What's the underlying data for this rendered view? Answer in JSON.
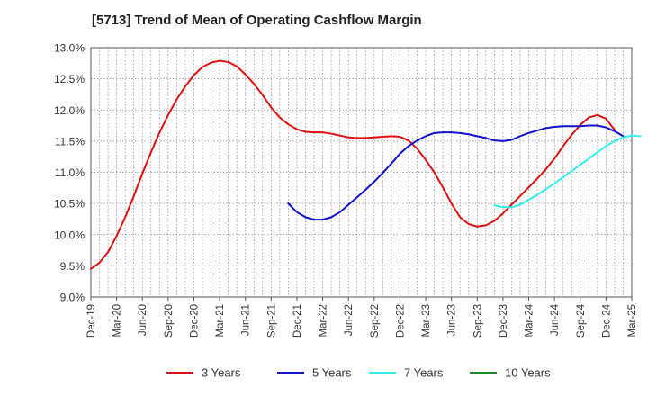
{
  "chart_data": {
    "type": "line",
    "title": "[5713]  Trend of Mean of Operating Cashflow Margin",
    "xlabel": "",
    "ylabel": "",
    "x_ticks": [
      "Dec-19",
      "Mar-20",
      "Jun-20",
      "Sep-20",
      "Dec-20",
      "Mar-21",
      "Jun-21",
      "Sep-21",
      "Dec-21",
      "Mar-22",
      "Jun-22",
      "Sep-22",
      "Dec-22",
      "Mar-23",
      "Jun-23",
      "Sep-23",
      "Dec-23",
      "Mar-24",
      "Jun-24",
      "Sep-24",
      "Dec-24",
      "Mar-25"
    ],
    "y_ticks": [
      "9.0%",
      "9.5%",
      "10.0%",
      "10.5%",
      "11.0%",
      "11.5%",
      "12.0%",
      "12.5%",
      "13.0%"
    ],
    "ylim": [
      9.0,
      13.0
    ],
    "grid": true,
    "legend_position": "bottom",
    "series": [
      {
        "name": "3 Years",
        "color": "#dd1111",
        "points": [
          [
            "Dec-19",
            9.45
          ],
          [
            "Jan-20",
            9.55
          ],
          [
            "Feb-20",
            9.72
          ],
          [
            "Mar-20",
            9.98
          ],
          [
            "Apr-20",
            10.28
          ],
          [
            "May-20",
            10.62
          ],
          [
            "Jun-20",
            10.98
          ],
          [
            "Jul-20",
            11.32
          ],
          [
            "Aug-20",
            11.64
          ],
          [
            "Sep-20",
            11.92
          ],
          [
            "Oct-20",
            12.17
          ],
          [
            "Nov-20",
            12.38
          ],
          [
            "Dec-20",
            12.56
          ],
          [
            "Jan-21",
            12.69
          ],
          [
            "Feb-21",
            12.76
          ],
          [
            "Mar-21",
            12.79
          ],
          [
            "Apr-21",
            12.77
          ],
          [
            "May-21",
            12.7
          ],
          [
            "Jun-21",
            12.57
          ],
          [
            "Jul-21",
            12.42
          ],
          [
            "Aug-21",
            12.24
          ],
          [
            "Sep-21",
            12.04
          ],
          [
            "Oct-21",
            11.88
          ],
          [
            "Nov-21",
            11.77
          ],
          [
            "Dec-21",
            11.69
          ],
          [
            "Jan-22",
            11.65
          ],
          [
            "Feb-22",
            11.64
          ],
          [
            "Mar-22",
            11.64
          ],
          [
            "Apr-22",
            11.62
          ],
          [
            "May-22",
            11.59
          ],
          [
            "Jun-22",
            11.56
          ],
          [
            "Jul-22",
            11.55
          ],
          [
            "Aug-22",
            11.55
          ],
          [
            "Sep-22",
            11.56
          ],
          [
            "Oct-22",
            11.57
          ],
          [
            "Nov-22",
            11.58
          ],
          [
            "Dec-22",
            11.57
          ],
          [
            "Jan-23",
            11.51
          ],
          [
            "Feb-23",
            11.38
          ],
          [
            "Mar-23",
            11.2
          ],
          [
            "Apr-23",
            11.0
          ],
          [
            "May-23",
            10.76
          ],
          [
            "Jun-23",
            10.5
          ],
          [
            "Jul-23",
            10.28
          ],
          [
            "Aug-23",
            10.17
          ],
          [
            "Sep-23",
            10.13
          ],
          [
            "Oct-23",
            10.15
          ],
          [
            "Nov-23",
            10.22
          ],
          [
            "Dec-23",
            10.34
          ],
          [
            "Jan-24",
            10.48
          ],
          [
            "Feb-24",
            10.62
          ],
          [
            "Mar-24",
            10.76
          ],
          [
            "Apr-24",
            10.9
          ],
          [
            "May-24",
            11.05
          ],
          [
            "Jun-24",
            11.22
          ],
          [
            "Jul-24",
            11.42
          ],
          [
            "Aug-24",
            11.6
          ],
          [
            "Sep-24",
            11.76
          ],
          [
            "Oct-24",
            11.88
          ],
          [
            "Nov-24",
            11.92
          ],
          [
            "Dec-24",
            11.86
          ],
          [
            "Jan-25",
            11.68
          ]
        ]
      },
      {
        "name": "5 Years",
        "color": "#1111cc",
        "points": [
          [
            "Nov-21",
            10.5
          ],
          [
            "Dec-21",
            10.36
          ],
          [
            "Jan-22",
            10.28
          ],
          [
            "Feb-22",
            10.24
          ],
          [
            "Mar-22",
            10.24
          ],
          [
            "Apr-22",
            10.28
          ],
          [
            "May-22",
            10.36
          ],
          [
            "Jun-22",
            10.48
          ],
          [
            "Jul-22",
            10.6
          ],
          [
            "Aug-22",
            10.72
          ],
          [
            "Sep-22",
            10.85
          ],
          [
            "Oct-22",
            10.99
          ],
          [
            "Nov-22",
            11.14
          ],
          [
            "Dec-22",
            11.3
          ],
          [
            "Jan-23",
            11.42
          ],
          [
            "Feb-23",
            11.51
          ],
          [
            "Mar-23",
            11.58
          ],
          [
            "Apr-23",
            11.63
          ],
          [
            "May-23",
            11.64
          ],
          [
            "Jun-23",
            11.64
          ],
          [
            "Jul-23",
            11.63
          ],
          [
            "Aug-23",
            11.61
          ],
          [
            "Sep-23",
            11.58
          ],
          [
            "Oct-23",
            11.55
          ],
          [
            "Nov-23",
            11.51
          ],
          [
            "Dec-23",
            11.5
          ],
          [
            "Jan-24",
            11.52
          ],
          [
            "Feb-24",
            11.58
          ],
          [
            "Mar-24",
            11.63
          ],
          [
            "Apr-24",
            11.67
          ],
          [
            "May-24",
            11.71
          ],
          [
            "Jun-24",
            11.73
          ],
          [
            "Jul-24",
            11.74
          ],
          [
            "Aug-24",
            11.74
          ],
          [
            "Sep-24",
            11.74
          ],
          [
            "Oct-24",
            11.75
          ],
          [
            "Nov-24",
            11.75
          ],
          [
            "Dec-24",
            11.72
          ],
          [
            "Jan-25",
            11.66
          ],
          [
            "Feb-25",
            11.58
          ]
        ]
      },
      {
        "name": "7 Years",
        "color": "#33eeee",
        "points": [
          [
            "Nov-23",
            10.47
          ],
          [
            "Dec-23",
            10.44
          ],
          [
            "Jan-24",
            10.44
          ],
          [
            "Feb-24",
            10.48
          ],
          [
            "Mar-24",
            10.56
          ],
          [
            "Apr-24",
            10.64
          ],
          [
            "May-24",
            10.73
          ],
          [
            "Jun-24",
            10.82
          ],
          [
            "Jul-24",
            10.92
          ],
          [
            "Aug-24",
            11.02
          ],
          [
            "Sep-24",
            11.12
          ],
          [
            "Oct-24",
            11.22
          ],
          [
            "Nov-24",
            11.32
          ],
          [
            "Dec-24",
            11.42
          ],
          [
            "Jan-25",
            11.5
          ],
          [
            "Feb-25",
            11.56
          ],
          [
            "Mar-25",
            11.59
          ],
          [
            "Apr-25",
            11.58
          ]
        ]
      },
      {
        "name": "10 Years",
        "color": "#228822",
        "points": []
      }
    ]
  }
}
